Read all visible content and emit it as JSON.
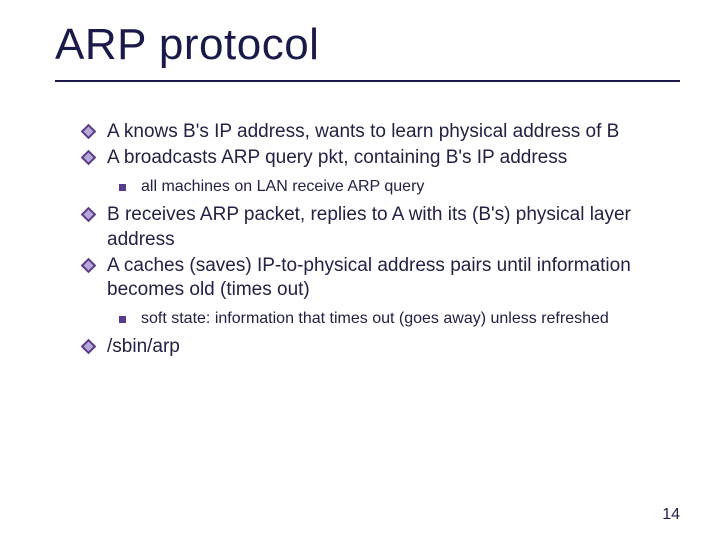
{
  "slide": {
    "title": "ARP protocol",
    "title_fontsize": 44,
    "title_font": "Comic Sans MS",
    "title_color": "#1a1a4a",
    "underline_color": "#1a1a4a",
    "body_font": "Verdana",
    "body_color": "#222244",
    "background_color": "#ffffff",
    "bullet_diamond_outer": "#5a3a8a",
    "bullet_diamond_inner": "#b8a8d8",
    "bullet_square": "#5a3a8a",
    "level1_fontsize": 19,
    "level2_fontsize": 16,
    "bullets": [
      {
        "level": 1,
        "text": "A knows B's IP address, wants to learn physical address of B"
      },
      {
        "level": 1,
        "text": "A broadcasts ARP query pkt, containing B's IP address"
      },
      {
        "level": 2,
        "text": "all machines on LAN receive ARP query"
      },
      {
        "level": 1,
        "text": "B receives ARP packet, replies to A with its (B's) physical layer address"
      },
      {
        "level": 1,
        "text": "A caches (saves) IP-to-physical address pairs until information becomes old (times out)"
      },
      {
        "level": 2,
        "text": "soft state: information that times out (goes away) unless refreshed"
      },
      {
        "level": 1,
        "text": "/sbin/arp"
      }
    ],
    "page_number": "14"
  }
}
